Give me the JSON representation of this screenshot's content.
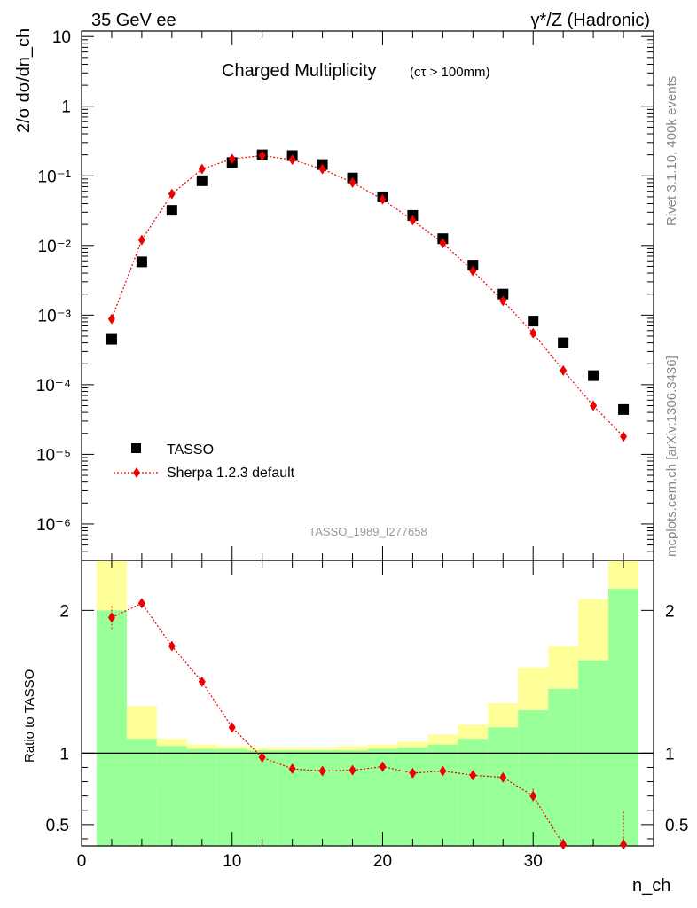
{
  "header": {
    "left": "35 GeV ee",
    "right": "γ*/Z (Hadronic)",
    "rivet": "Rivet 3.1.10,  400k events",
    "mcplots": "mcplots.cern.ch [arXiv:1306.3436]",
    "analysis": "TASSO_1989_I277658"
  },
  "chart_data": [
    {
      "type": "scatter",
      "title": "Charged Multiplicity",
      "subtitle": "(cτ > 100mm)",
      "ylabel": "2/σ dσ/dn_ch",
      "xlim": [
        0,
        38
      ],
      "ylim": [
        3e-07,
        12
      ],
      "yscale": "log",
      "ytick_labels": [
        "10⁻⁶",
        "10⁻⁵",
        "10⁻⁴",
        "10⁻³",
        "10⁻²",
        "10⁻¹",
        "1",
        "10"
      ],
      "legend_placement": "bottom-left",
      "series": [
        {
          "name": "TASSO",
          "marker": "square",
          "color": "#000000",
          "x": [
            2,
            4,
            6,
            8,
            10,
            12,
            14,
            16,
            18,
            20,
            22,
            24,
            26,
            28,
            30,
            32,
            34,
            36
          ],
          "y": [
            0.00045,
            0.0058,
            0.032,
            0.085,
            0.155,
            0.2,
            0.195,
            0.145,
            0.093,
            0.05,
            0.027,
            0.0125,
            0.0052,
            0.002,
            0.00082,
            0.0004,
            0.000135,
            4.4e-05
          ]
        },
        {
          "name": "Sherpa 1.2.3 default",
          "marker": "diamond",
          "line": "dotted",
          "color": "#ee0000",
          "x": [
            2,
            4,
            6,
            8,
            10,
            12,
            14,
            16,
            18,
            20,
            22,
            24,
            26,
            28,
            30,
            32,
            34,
            36
          ],
          "y": [
            0.00088,
            0.012,
            0.055,
            0.125,
            0.175,
            0.195,
            0.17,
            0.125,
            0.08,
            0.046,
            0.023,
            0.0108,
            0.0043,
            0.0016,
            0.00055,
            0.00016,
            5e-05,
            1.8e-05
          ]
        }
      ]
    },
    {
      "type": "scatter",
      "ylabel": "Ratio to TASSO",
      "xlabel": "n_ch",
      "xlim": [
        0,
        38
      ],
      "ylim": [
        0.35,
        2.35
      ],
      "xtick_labels": [
        "0",
        "10",
        "20",
        "30"
      ],
      "ytick_labels": [
        "0.5",
        "1",
        "2"
      ],
      "bands": [
        {
          "x0": 1,
          "x1": 3,
          "green": [
            0.35,
            2.0
          ],
          "yellow": [
            0.35,
            2.35
          ]
        },
        {
          "x0": 3,
          "x1": 5,
          "green": [
            0.35,
            1.1
          ],
          "yellow": [
            0.78,
            1.33
          ]
        },
        {
          "x0": 5,
          "x1": 7,
          "green": [
            0.35,
            1.05
          ],
          "yellow": [
            0.94,
            1.1
          ]
        },
        {
          "x0": 7,
          "x1": 9,
          "green": [
            0.35,
            1.03
          ],
          "yellow": [
            0.97,
            1.06
          ]
        },
        {
          "x0": 9,
          "x1": 11,
          "green": [
            0.35,
            1.03
          ],
          "yellow": [
            0.98,
            1.05
          ]
        },
        {
          "x0": 11,
          "x1": 13,
          "green": [
            0.35,
            1.02
          ],
          "yellow": [
            0.98,
            1.04
          ]
        },
        {
          "x0": 13,
          "x1": 15,
          "green": [
            0.35,
            1.02
          ],
          "yellow": [
            0.98,
            1.04
          ]
        },
        {
          "x0": 15,
          "x1": 17,
          "green": [
            0.35,
            1.02
          ],
          "yellow": [
            0.98,
            1.04
          ]
        },
        {
          "x0": 17,
          "x1": 19,
          "green": [
            0.35,
            1.02
          ],
          "yellow": [
            0.97,
            1.05
          ]
        },
        {
          "x0": 19,
          "x1": 21,
          "green": [
            0.35,
            1.03
          ],
          "yellow": [
            0.96,
            1.06
          ]
        },
        {
          "x0": 21,
          "x1": 23,
          "green": [
            0.35,
            1.04
          ],
          "yellow": [
            0.95,
            1.08
          ]
        },
        {
          "x0": 23,
          "x1": 25,
          "green": [
            0.35,
            1.06
          ],
          "yellow": [
            0.92,
            1.13
          ]
        },
        {
          "x0": 25,
          "x1": 27,
          "green": [
            0.35,
            1.1
          ],
          "yellow": [
            0.86,
            1.2
          ]
        },
        {
          "x0": 27,
          "x1": 29,
          "green": [
            0.35,
            1.18
          ],
          "yellow": [
            0.75,
            1.35
          ]
        },
        {
          "x0": 29,
          "x1": 31,
          "green": [
            0.35,
            1.3
          ],
          "yellow": [
            0.58,
            1.6
          ]
        },
        {
          "x0": 31,
          "x1": 33,
          "green": [
            0.35,
            1.45
          ],
          "yellow": [
            0.35,
            1.75
          ]
        },
        {
          "x0": 33,
          "x1": 35,
          "green": [
            0.35,
            1.65
          ],
          "yellow": [
            0.35,
            2.08
          ]
        },
        {
          "x0": 35,
          "x1": 37,
          "green": [
            0.35,
            2.15
          ],
          "yellow": [
            0.35,
            2.35
          ]
        }
      ],
      "series": [
        {
          "name": "Sherpa 1.2.3 default",
          "marker": "diamond",
          "line": "dotted",
          "color": "#ee0000",
          "x": [
            2,
            4,
            6,
            8,
            10,
            12,
            14,
            16,
            18,
            20,
            22,
            24,
            26,
            28,
            30,
            32,
            36
          ],
          "y": [
            1.95,
            2.05,
            1.75,
            1.5,
            1.18,
            0.97,
            0.89,
            0.875,
            0.88,
            0.905,
            0.86,
            0.875,
            0.845,
            0.83,
            0.7,
            0.36,
            0.36
          ]
        }
      ]
    }
  ]
}
